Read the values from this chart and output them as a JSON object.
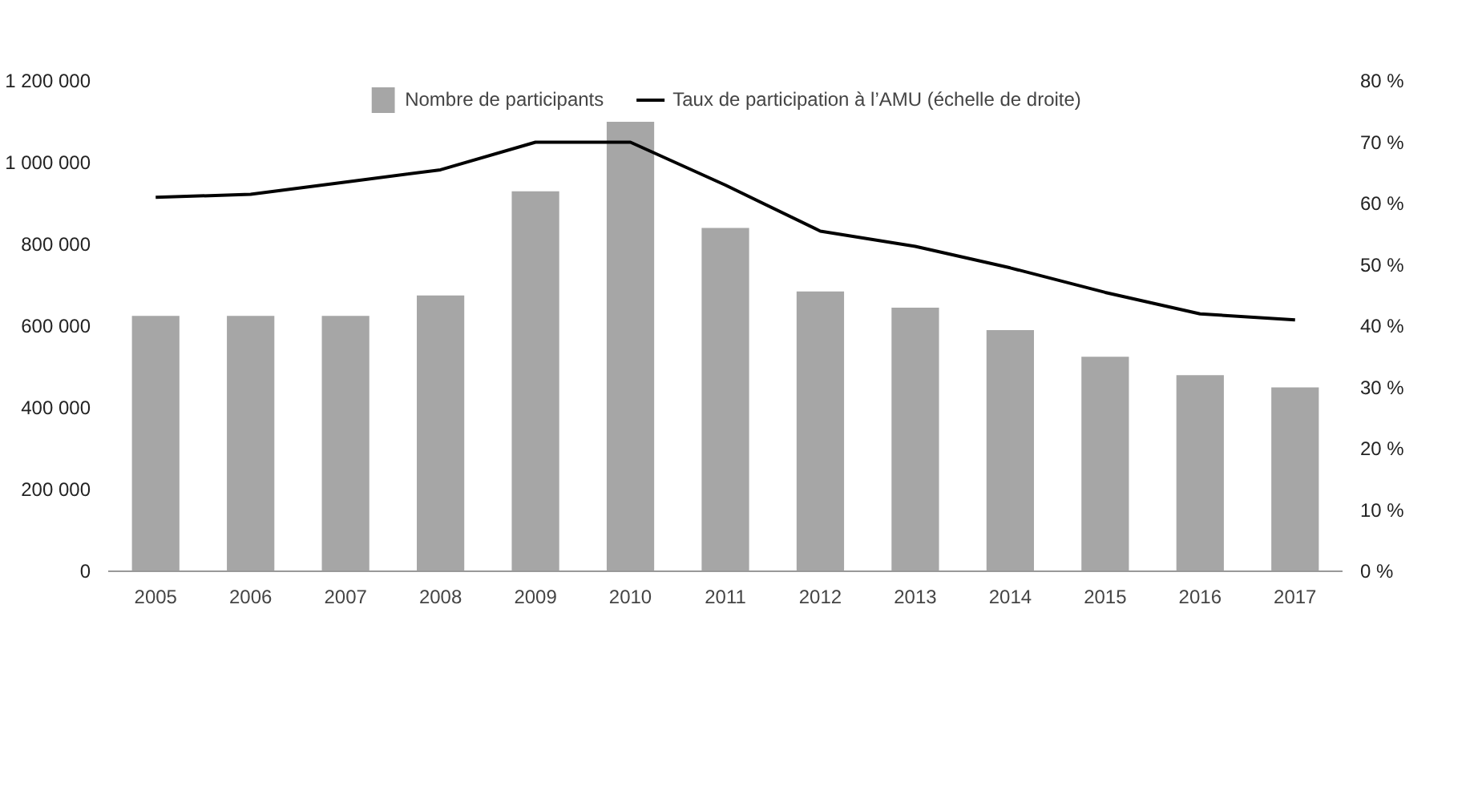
{
  "chart_data": {
    "type": "bar",
    "categories": [
      "2005",
      "2006",
      "2007",
      "2008",
      "2009",
      "2010",
      "2011",
      "2012",
      "2013",
      "2014",
      "2015",
      "2016",
      "2017"
    ],
    "series": [
      {
        "name": "Nombre de participants",
        "color": "#a6a6a6",
        "values": [
          625000,
          625000,
          625000,
          675000,
          930000,
          1100000,
          840000,
          685000,
          645000,
          590000,
          525000,
          480000,
          450000
        ]
      },
      {
        "name": "Taux de participation à l’AMU (échelle de droite)",
        "type": "line",
        "axis": "y2",
        "color": "#000000",
        "values": [
          61,
          61.5,
          63.5,
          65.5,
          70,
          70,
          63,
          55.5,
          53,
          49.5,
          45.5,
          42,
          41
        ]
      }
    ],
    "ylim": [
      0,
      1200000
    ],
    "yticks": [
      {
        "value": 0,
        "label": "0"
      },
      {
        "value": 200000,
        "label": "200 000"
      },
      {
        "value": 400000,
        "label": "400 000"
      },
      {
        "value": 600000,
        "label": "600 000"
      },
      {
        "value": 800000,
        "label": "800 000"
      },
      {
        "value": 1000000,
        "label": "1 000 000"
      },
      {
        "value": 1200000,
        "label": "1 200 000"
      }
    ],
    "y2lim": [
      0,
      80
    ],
    "y2ticks": [
      {
        "value": 0,
        "label": "0 %"
      },
      {
        "value": 10,
        "label": "10 %"
      },
      {
        "value": 20,
        "label": "20 %"
      },
      {
        "value": 30,
        "label": "30 %"
      },
      {
        "value": 40,
        "label": "40 %"
      },
      {
        "value": 50,
        "label": "50 %"
      },
      {
        "value": 60,
        "label": "60 %"
      },
      {
        "value": 70,
        "label": "70 %"
      },
      {
        "value": 80,
        "label": "80 %"
      }
    ],
    "grid": false,
    "legend": "top",
    "marker": "none",
    "line_style": "solid"
  }
}
